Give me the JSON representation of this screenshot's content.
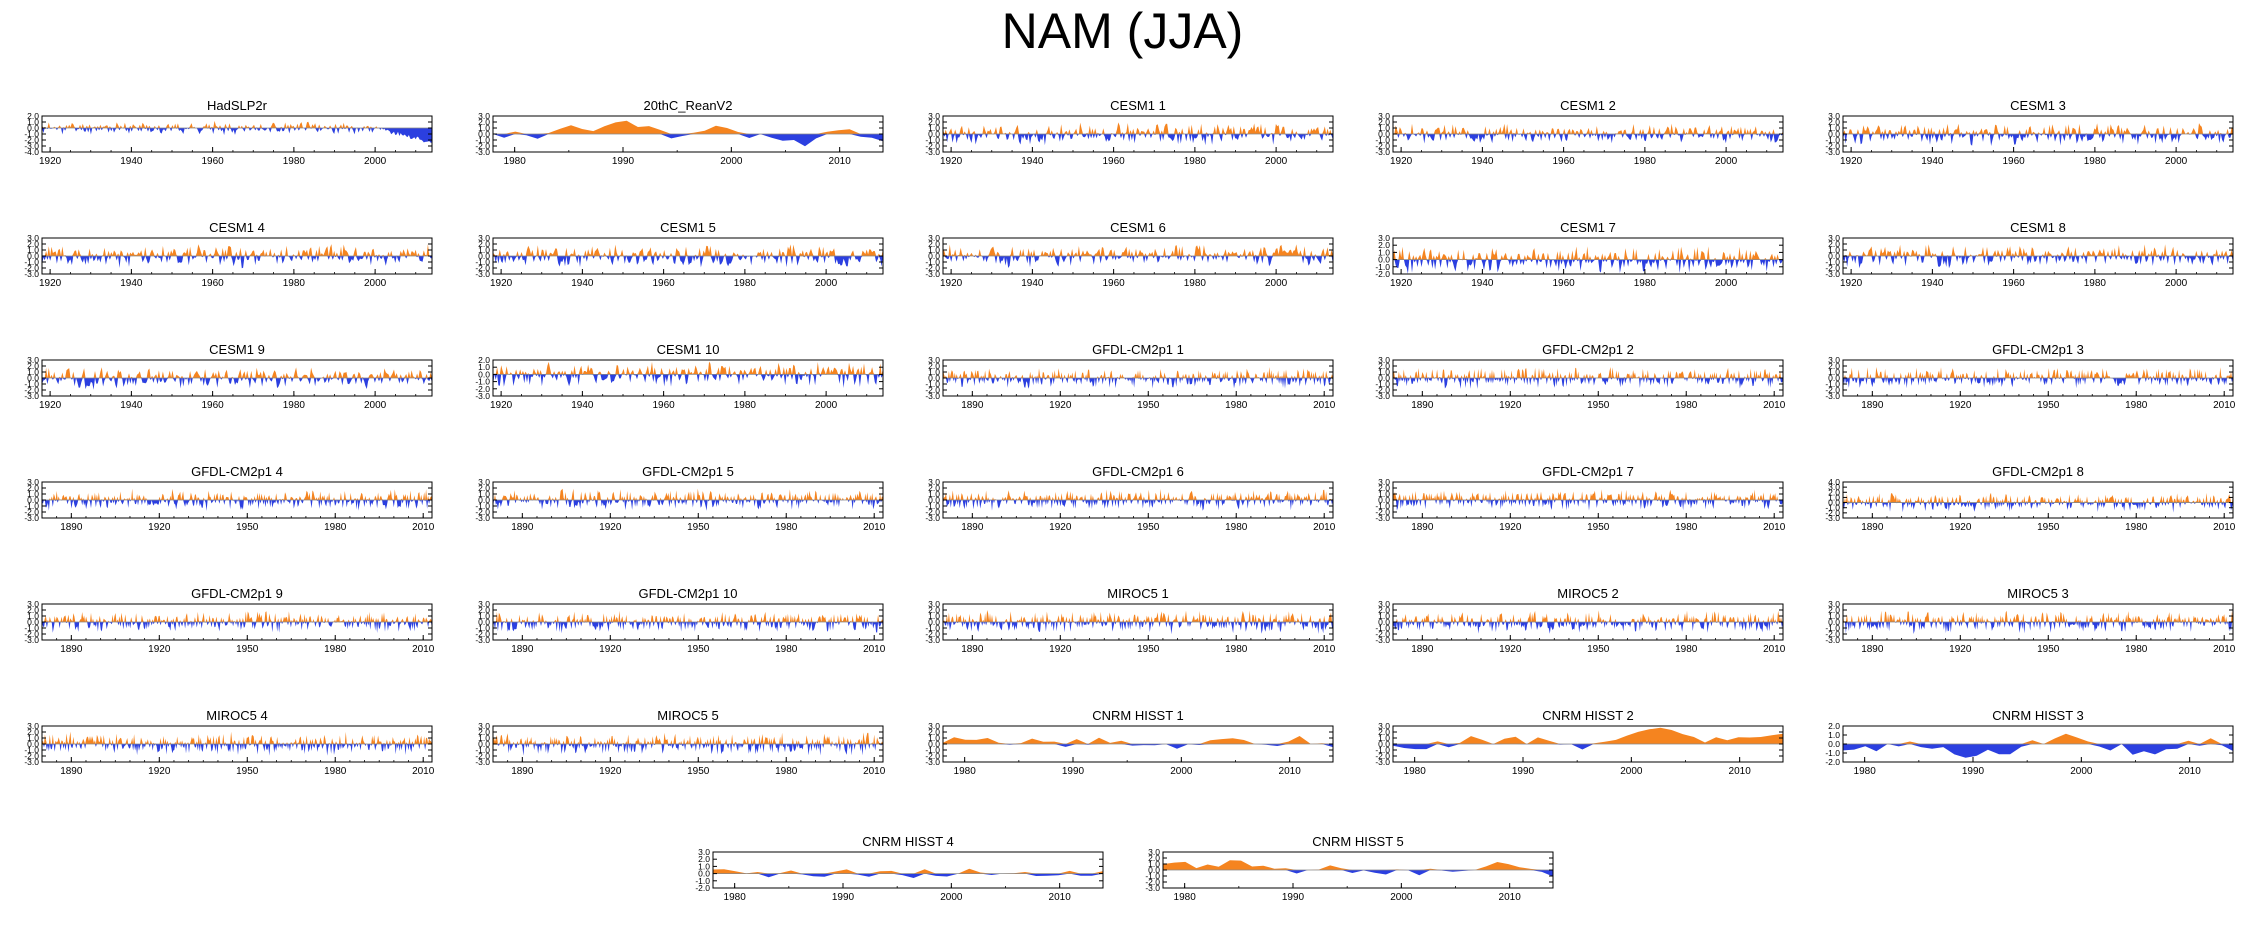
{
  "title": "NAM (JJA)",
  "colors": {
    "positive": "#f5841f",
    "negative": "#2b3fe0",
    "axis": "#000000",
    "zero_line": "#888888"
  },
  "panel_titles": [
    "HadSLP2r",
    "20thC_ReanV2",
    "CESM1 1",
    "CESM1 2",
    "CESM1 3",
    "CESM1 4",
    "CESM1 5",
    "CESM1 6",
    "CESM1 7",
    "CESM1 8",
    "CESM1 9",
    "CESM1 10",
    "GFDL-CM2p1 1",
    "GFDL-CM2p1 2",
    "GFDL-CM2p1 3",
    "GFDL-CM2p1 4",
    "GFDL-CM2p1 5",
    "GFDL-CM2p1 6",
    "GFDL-CM2p1 7",
    "GFDL-CM2p1 8",
    "GFDL-CM2p1 9",
    "GFDL-CM2p1 10",
    "MIROC5 1",
    "MIROC5 2",
    "MIROC5 3",
    "MIROC5 4",
    "MIROC5 5",
    "CNRM HISST 1",
    "CNRM HISST 2",
    "CNRM HISST 3",
    "CNRM HISST 4",
    "CNRM HISST 5"
  ],
  "chart_data": {
    "type": "area",
    "title": "NAM (JJA)",
    "description_of_values": "NAM index time series per dataset; positive anomalies filled orange, negative filled blue",
    "panels": [
      {
        "name": "HadSLP2r",
        "x_range": [
          1918,
          2014
        ],
        "x_ticks": [
          1920,
          1940,
          1960,
          1980,
          2000
        ],
        "ylim": [
          -4.0,
          2.0
        ],
        "y_ticks": [
          2.0,
          1.0,
          0.0,
          -1.0,
          -2.0,
          -3.0,
          -4.0
        ],
        "seed": 11,
        "amp": 0.8,
        "trend": -2.5
      },
      {
        "name": "20thC_ReanV2",
        "x_range": [
          1978,
          2014
        ],
        "x_ticks": [
          1980,
          1990,
          2000,
          2010
        ],
        "ylim": [
          -3.0,
          3.0
        ],
        "y_ticks": [
          3.0,
          2.0,
          1.0,
          0.0,
          -1.0,
          -2.0,
          -3.0
        ],
        "seed": 12,
        "amp": 1.6,
        "smooth": true
      },
      {
        "name": "CESM1 1",
        "x_range": [
          1918,
          2014
        ],
        "x_ticks": [
          1920,
          1940,
          1960,
          1980,
          2000
        ],
        "ylim": [
          -3.0,
          3.0
        ],
        "y_ticks": [
          3.0,
          2.0,
          1.0,
          0.0,
          -1.0,
          -2.0,
          -3.0
        ],
        "seed": 13,
        "amp": 1.4
      },
      {
        "name": "CESM1 2",
        "x_range": [
          1918,
          2014
        ],
        "x_ticks": [
          1920,
          1940,
          1960,
          1980,
          2000
        ],
        "ylim": [
          -3.0,
          3.0
        ],
        "y_ticks": [
          3.0,
          2.0,
          1.0,
          0.0,
          -1.0,
          -2.0,
          -3.0
        ],
        "seed": 14,
        "amp": 1.2
      },
      {
        "name": "CESM1 3",
        "x_range": [
          1918,
          2014
        ],
        "x_ticks": [
          1920,
          1940,
          1960,
          1980,
          2000
        ],
        "ylim": [
          -3.0,
          3.0
        ],
        "y_ticks": [
          3.0,
          2.0,
          1.0,
          0.0,
          -1.0,
          -2.0,
          -3.0
        ],
        "seed": 15,
        "amp": 1.4
      },
      {
        "name": "CESM1 4",
        "x_range": [
          1918,
          2014
        ],
        "x_ticks": [
          1920,
          1940,
          1960,
          1980,
          2000
        ],
        "ylim": [
          -3.0,
          3.0
        ],
        "y_ticks": [
          3.0,
          2.0,
          1.0,
          0.0,
          -1.0,
          -2.0,
          -3.0
        ],
        "seed": 16,
        "amp": 1.4
      },
      {
        "name": "CESM1 5",
        "x_range": [
          1918,
          2014
        ],
        "x_ticks": [
          1920,
          1940,
          1960,
          1980,
          2000
        ],
        "ylim": [
          -3.0,
          3.0
        ],
        "y_ticks": [
          3.0,
          2.0,
          1.0,
          0.0,
          -1.0,
          -2.0,
          -3.0
        ],
        "seed": 17,
        "amp": 1.4
      },
      {
        "name": "CESM1 6",
        "x_range": [
          1918,
          2014
        ],
        "x_ticks": [
          1920,
          1940,
          1960,
          1980,
          2000
        ],
        "ylim": [
          -3.0,
          3.0
        ],
        "y_ticks": [
          3.0,
          2.0,
          1.0,
          0.0,
          -1.0,
          -2.0,
          -3.0
        ],
        "seed": 18,
        "amp": 1.4
      },
      {
        "name": "CESM1 7",
        "x_range": [
          1918,
          2014
        ],
        "x_ticks": [
          1920,
          1940,
          1960,
          1980,
          2000
        ],
        "ylim": [
          -2.0,
          3.0
        ],
        "y_ticks": [
          3.0,
          2.0,
          1.0,
          0.0,
          -1.0,
          -2.0
        ],
        "seed": 19,
        "amp": 1.4
      },
      {
        "name": "CESM1 8",
        "x_range": [
          1918,
          2014
        ],
        "x_ticks": [
          1920,
          1940,
          1960,
          1980,
          2000
        ],
        "ylim": [
          -3.0,
          3.0
        ],
        "y_ticks": [
          3.0,
          2.0,
          1.0,
          0.0,
          -1.0,
          -2.0,
          -3.0
        ],
        "seed": 20,
        "amp": 1.4
      },
      {
        "name": "CESM1 9",
        "x_range": [
          1918,
          2014
        ],
        "x_ticks": [
          1920,
          1940,
          1960,
          1980,
          2000
        ],
        "ylim": [
          -3.0,
          3.0
        ],
        "y_ticks": [
          3.0,
          2.0,
          1.0,
          0.0,
          -1.0,
          -2.0,
          -3.0
        ],
        "seed": 21,
        "amp": 1.4
      },
      {
        "name": "CESM1 10",
        "x_range": [
          1918,
          2014
        ],
        "x_ticks": [
          1920,
          1940,
          1960,
          1980,
          2000
        ],
        "ylim": [
          -3.0,
          2.0
        ],
        "y_ticks": [
          2.0,
          1.0,
          0.0,
          -1.0,
          -2.0,
          -3.0
        ],
        "seed": 22,
        "amp": 1.3
      },
      {
        "name": "GFDL-CM2p1 1",
        "x_range": [
          1880,
          2013
        ],
        "x_ticks": [
          1890,
          1920,
          1950,
          1980,
          2010
        ],
        "ylim": [
          -3.0,
          3.0
        ],
        "y_ticks": [
          3.0,
          2.0,
          1.0,
          0.0,
          -1.0,
          -2.0,
          -3.0
        ],
        "seed": 23,
        "amp": 1.3
      },
      {
        "name": "GFDL-CM2p1 2",
        "x_range": [
          1880,
          2013
        ],
        "x_ticks": [
          1890,
          1920,
          1950,
          1980,
          2010
        ],
        "ylim": [
          -3.0,
          3.0
        ],
        "y_ticks": [
          3.0,
          2.0,
          1.0,
          0.0,
          -1.0,
          -2.0,
          -3.0
        ],
        "seed": 24,
        "amp": 1.3
      },
      {
        "name": "GFDL-CM2p1 3",
        "x_range": [
          1880,
          2013
        ],
        "x_ticks": [
          1890,
          1920,
          1950,
          1980,
          2010
        ],
        "ylim": [
          -3.0,
          3.0
        ],
        "y_ticks": [
          3.0,
          2.0,
          1.0,
          0.0,
          -1.0,
          -2.0,
          -3.0
        ],
        "seed": 25,
        "amp": 1.3
      },
      {
        "name": "GFDL-CM2p1 4",
        "x_range": [
          1880,
          2013
        ],
        "x_ticks": [
          1890,
          1920,
          1950,
          1980,
          2010
        ],
        "ylim": [
          -3.0,
          3.0
        ],
        "y_ticks": [
          3.0,
          2.0,
          1.0,
          0.0,
          -1.0,
          -2.0,
          -3.0
        ],
        "seed": 26,
        "amp": 1.3
      },
      {
        "name": "GFDL-CM2p1 5",
        "x_range": [
          1880,
          2013
        ],
        "x_ticks": [
          1890,
          1920,
          1950,
          1980,
          2010
        ],
        "ylim": [
          -3.0,
          3.0
        ],
        "y_ticks": [
          3.0,
          2.0,
          1.0,
          0.0,
          -1.0,
          -2.0,
          -3.0
        ],
        "seed": 27,
        "amp": 1.3
      },
      {
        "name": "GFDL-CM2p1 6",
        "x_range": [
          1880,
          2013
        ],
        "x_ticks": [
          1890,
          1920,
          1950,
          1980,
          2010
        ],
        "ylim": [
          -3.0,
          3.0
        ],
        "y_ticks": [
          3.0,
          2.0,
          1.0,
          0.0,
          -1.0,
          -2.0,
          -3.0
        ],
        "seed": 28,
        "amp": 1.3
      },
      {
        "name": "GFDL-CM2p1 7",
        "x_range": [
          1880,
          2013
        ],
        "x_ticks": [
          1890,
          1920,
          1950,
          1980,
          2010
        ],
        "ylim": [
          -3.0,
          3.0
        ],
        "y_ticks": [
          3.0,
          2.0,
          1.0,
          0.0,
          -1.0,
          -2.0,
          -3.0
        ],
        "seed": 29,
        "amp": 1.3
      },
      {
        "name": "GFDL-CM2p1 8",
        "x_range": [
          1880,
          2013
        ],
        "x_ticks": [
          1890,
          1920,
          1950,
          1980,
          2010
        ],
        "ylim": [
          -3.0,
          4.0
        ],
        "y_ticks": [
          4.0,
          3.0,
          2.0,
          1.0,
          0.0,
          -1.0,
          -2.0,
          -3.0
        ],
        "seed": 30,
        "amp": 1.4
      },
      {
        "name": "GFDL-CM2p1 9",
        "x_range": [
          1880,
          2013
        ],
        "x_ticks": [
          1890,
          1920,
          1950,
          1980,
          2010
        ],
        "ylim": [
          -3.0,
          3.0
        ],
        "y_ticks": [
          3.0,
          2.0,
          1.0,
          0.0,
          -1.0,
          -2.0,
          -3.0
        ],
        "seed": 31,
        "amp": 1.3
      },
      {
        "name": "GFDL-CM2p1 10",
        "x_range": [
          1880,
          2013
        ],
        "x_ticks": [
          1890,
          1920,
          1950,
          1980,
          2010
        ],
        "ylim": [
          -3.0,
          3.0
        ],
        "y_ticks": [
          3.0,
          2.0,
          1.0,
          0.0,
          -1.0,
          -2.0,
          -3.0
        ],
        "seed": 32,
        "amp": 1.3
      },
      {
        "name": "MIROC5 1",
        "x_range": [
          1880,
          2013
        ],
        "x_ticks": [
          1890,
          1920,
          1950,
          1980,
          2010
        ],
        "ylim": [
          -3.0,
          3.0
        ],
        "y_ticks": [
          3.0,
          2.0,
          1.0,
          0.0,
          -1.0,
          -2.0,
          -3.0
        ],
        "seed": 33,
        "amp": 1.4
      },
      {
        "name": "MIROC5 2",
        "x_range": [
          1880,
          2013
        ],
        "x_ticks": [
          1890,
          1920,
          1950,
          1980,
          2010
        ],
        "ylim": [
          -3.0,
          3.0
        ],
        "y_ticks": [
          3.0,
          2.0,
          1.0,
          0.0,
          -1.0,
          -2.0,
          -3.0
        ],
        "seed": 34,
        "amp": 1.4
      },
      {
        "name": "MIROC5 3",
        "x_range": [
          1880,
          2013
        ],
        "x_ticks": [
          1890,
          1920,
          1950,
          1980,
          2010
        ],
        "ylim": [
          -3.0,
          3.0
        ],
        "y_ticks": [
          3.0,
          2.0,
          1.0,
          0.0,
          -1.0,
          -2.0,
          -3.0
        ],
        "seed": 35,
        "amp": 1.4
      },
      {
        "name": "MIROC5 4",
        "x_range": [
          1880,
          2013
        ],
        "x_ticks": [
          1890,
          1920,
          1950,
          1980,
          2010
        ],
        "ylim": [
          -3.0,
          3.0
        ],
        "y_ticks": [
          3.0,
          2.0,
          1.0,
          0.0,
          -1.0,
          -2.0,
          -3.0
        ],
        "seed": 36,
        "amp": 1.4
      },
      {
        "name": "MIROC5 5",
        "x_range": [
          1880,
          2013
        ],
        "x_ticks": [
          1890,
          1920,
          1950,
          1980,
          2010
        ],
        "ylim": [
          -3.0,
          3.0
        ],
        "y_ticks": [
          3.0,
          2.0,
          1.0,
          0.0,
          -1.0,
          -2.0,
          -3.0
        ],
        "seed": 37,
        "amp": 1.4
      },
      {
        "name": "CNRM HISST 1",
        "x_range": [
          1978,
          2014
        ],
        "x_ticks": [
          1980,
          1990,
          2000,
          2010
        ],
        "ylim": [
          -3.0,
          3.0
        ],
        "y_ticks": [
          3.0,
          2.0,
          1.0,
          0.0,
          -1.0,
          -2.0,
          -3.0
        ],
        "seed": 38,
        "amp": 1.5,
        "smooth": true
      },
      {
        "name": "CNRM HISST 2",
        "x_range": [
          1978,
          2014
        ],
        "x_ticks": [
          1980,
          1990,
          2000,
          2010
        ],
        "ylim": [
          -3.0,
          3.0
        ],
        "y_ticks": [
          3.0,
          2.0,
          1.0,
          0.0,
          -1.0,
          -2.0,
          -3.0
        ],
        "seed": 39,
        "amp": 1.5,
        "smooth": true
      },
      {
        "name": "CNRM HISST 3",
        "x_range": [
          1978,
          2014
        ],
        "x_ticks": [
          1980,
          1990,
          2000,
          2010
        ],
        "ylim": [
          -2.0,
          2.0
        ],
        "y_ticks": [
          2.0,
          1.0,
          0.0,
          -1.0,
          -2.0
        ],
        "seed": 40,
        "amp": 1.4,
        "smooth": true
      },
      {
        "name": "CNRM HISST 4",
        "x_range": [
          1978,
          2014
        ],
        "x_ticks": [
          1980,
          1990,
          2000,
          2010
        ],
        "ylim": [
          -2.0,
          3.0
        ],
        "y_ticks": [
          3.0,
          2.0,
          1.0,
          0.0,
          -1.0,
          -2.0
        ],
        "seed": 41,
        "amp": 1.5,
        "smooth": true
      },
      {
        "name": "CNRM HISST 5",
        "x_range": [
          1978,
          2014
        ],
        "x_ticks": [
          1980,
          1990,
          2000,
          2010
        ],
        "ylim": [
          -3.0,
          3.0
        ],
        "y_ticks": [
          3.0,
          2.0,
          1.0,
          0.0,
          -1.0,
          -2.0,
          -3.0
        ],
        "seed": 42,
        "amp": 1.5,
        "smooth": true
      }
    ]
  }
}
